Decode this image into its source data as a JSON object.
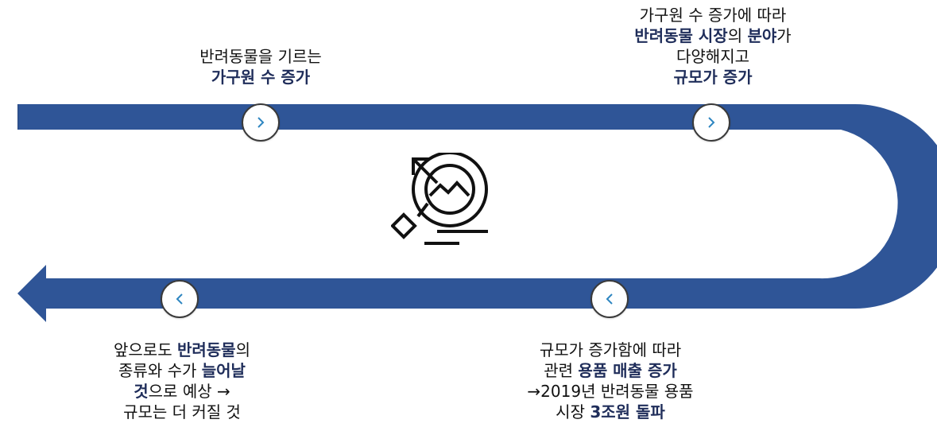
{
  "colors": {
    "track": "#2f5597",
    "emphasis": "#1f2d5a",
    "chevron": "#2e86c1",
    "icon": "#111111"
  },
  "icons": {
    "center": "target-growth-icon",
    "node": "chevron-icon"
  },
  "steps": [
    {
      "direction": "right",
      "lines": [
        [
          {
            "text": "반려동물을 기르는"
          }
        ],
        [
          {
            "text": "가구원 수 증가",
            "bold": true
          }
        ]
      ]
    },
    {
      "direction": "right",
      "lines": [
        [
          {
            "text": "가구원 수 증가에 따라"
          }
        ],
        [
          {
            "text": "반려동물 시장",
            "bold": true
          },
          {
            "text": "의 "
          },
          {
            "text": "분야",
            "bold": true
          },
          {
            "text": "가"
          }
        ],
        [
          {
            "text": "다양해지고"
          }
        ],
        [
          {
            "text": "규모가 증가",
            "bold": true
          }
        ]
      ]
    },
    {
      "direction": "left",
      "lines": [
        [
          {
            "text": "규모가 증가함에 따라"
          }
        ],
        [
          {
            "text": "관련 "
          },
          {
            "text": "용품 매출 증가",
            "bold": true
          }
        ],
        [
          {
            "text": "→2019년 반려동물 용품"
          }
        ],
        [
          {
            "text": "시장 "
          },
          {
            "text": "3조원 돌파",
            "bold": true
          }
        ]
      ]
    },
    {
      "direction": "left",
      "lines": [
        [
          {
            "text": "앞으로도 "
          },
          {
            "text": "반려동물",
            "bold": true
          },
          {
            "text": "의"
          }
        ],
        [
          {
            "text": "종류와 수가 "
          },
          {
            "text": "늘어날",
            "bold": true
          }
        ],
        [
          {
            "text": "것",
            "bold": true
          },
          {
            "text": "으로 예상 →"
          }
        ],
        [
          {
            "text": "규모는 더 커질 것"
          }
        ]
      ]
    }
  ]
}
